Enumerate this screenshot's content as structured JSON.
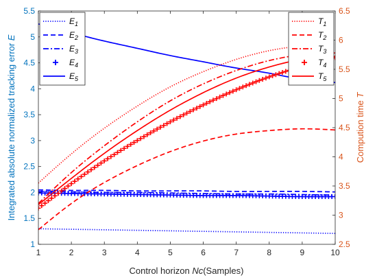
{
  "chart_data": {
    "type": "line",
    "xlabel": {
      "prefix": "Control horizon ",
      "italic": "Nc",
      "suffix": "(Samples)"
    },
    "ylabel_left": {
      "prefix": "Integrated absolute normalized tracking error ",
      "italic": "E"
    },
    "ylabel_right": {
      "prefix": "Compution time ",
      "italic": "T"
    },
    "xlim": [
      1,
      10
    ],
    "ylim_left": [
      1,
      5.5
    ],
    "ylim_right": [
      2.5,
      6.5
    ],
    "xticks": [
      "1",
      "2",
      "3",
      "4",
      "5",
      "6",
      "7",
      "8",
      "9",
      "10"
    ],
    "yticks_left": [
      "1",
      "1.5",
      "2",
      "2.5",
      "3",
      "3.5",
      "4",
      "4.5",
      "5",
      "5.5"
    ],
    "yticks_right": [
      "2.5",
      "3",
      "3.5",
      "4",
      "4.5",
      "5",
      "5.5",
      "6",
      "6.5"
    ],
    "grid": false,
    "legend_left_position": "top-left",
    "legend_right_position": "top-right",
    "colors": {
      "left": "#0000ff",
      "right": "#ff0000",
      "left_axis": "#0072bd",
      "right_axis": "#d95319"
    },
    "series_left": [
      {
        "name": "E",
        "sub": "1",
        "style": "dotted",
        "x": [
          1,
          2,
          3,
          4,
          5,
          6,
          7,
          8,
          9,
          10
        ],
        "values": [
          1.3,
          1.29,
          1.28,
          1.27,
          1.26,
          1.25,
          1.24,
          1.23,
          1.22,
          1.21
        ]
      },
      {
        "name": "E",
        "sub": "2",
        "style": "dashed",
        "x": [
          1,
          2,
          3,
          4,
          5,
          6,
          7,
          8,
          9,
          10
        ],
        "values": [
          2.05,
          2.04,
          2.04,
          2.03,
          2.03,
          2.03,
          2.02,
          2.02,
          2.02,
          2.01
        ]
      },
      {
        "name": "E",
        "sub": "3",
        "style": "dashdot",
        "x": [
          1,
          2,
          3,
          4,
          5,
          6,
          7,
          8,
          9,
          10
        ],
        "values": [
          2.02,
          2.01,
          2.0,
          2.0,
          1.99,
          1.98,
          1.97,
          1.97,
          1.96,
          1.95
        ]
      },
      {
        "name": "E",
        "sub": "4",
        "style": "plus",
        "x": [
          1,
          2,
          3,
          4,
          5,
          6,
          7,
          8,
          9,
          10
        ],
        "values": [
          1.99,
          1.98,
          1.97,
          1.96,
          1.95,
          1.94,
          1.94,
          1.93,
          1.92,
          1.92
        ]
      },
      {
        "name": "E",
        "sub": "5",
        "style": "solid",
        "x": [
          1,
          2,
          3,
          4,
          5,
          6,
          7,
          8,
          9,
          10
        ],
        "values": [
          5.25,
          5.08,
          4.92,
          4.78,
          4.64,
          4.52,
          4.4,
          4.3,
          4.18,
          4.12
        ]
      }
    ],
    "series_right": [
      {
        "name": "T",
        "sub": "1",
        "style": "dotted",
        "x": [
          1,
          2,
          3,
          4,
          5,
          6,
          7,
          8,
          9,
          10
        ],
        "values": [
          3.55,
          4.05,
          4.49,
          4.87,
          5.2,
          5.46,
          5.67,
          5.82,
          5.9,
          5.93
        ]
      },
      {
        "name": "T",
        "sub": "2",
        "style": "dashed",
        "x": [
          1,
          2,
          3,
          4,
          5,
          6,
          7,
          8,
          9,
          10
        ],
        "values": [
          2.75,
          3.2,
          3.56,
          3.85,
          4.09,
          4.27,
          4.39,
          4.45,
          4.48,
          4.46
        ]
      },
      {
        "name": "T",
        "sub": "3",
        "style": "dashdot",
        "x": [
          1,
          2,
          3,
          4,
          5,
          6,
          7,
          8,
          9,
          10
        ],
        "values": [
          3.2,
          3.73,
          4.19,
          4.6,
          4.96,
          5.25,
          5.48,
          5.65,
          5.75,
          5.78
        ]
      },
      {
        "name": "T",
        "sub": "4",
        "style": "plus",
        "x": [
          1,
          2,
          3,
          4,
          5,
          6,
          7,
          8,
          9,
          10
        ],
        "values": [
          3.12,
          3.54,
          3.93,
          4.28,
          4.6,
          4.89,
          5.15,
          5.37,
          5.55,
          5.7
        ]
      },
      {
        "name": "T",
        "sub": "5",
        "style": "solid",
        "x": [
          1,
          2,
          3,
          4,
          5,
          6,
          7,
          8,
          9,
          10
        ],
        "values": [
          3.18,
          3.63,
          4.06,
          4.45,
          4.8,
          5.1,
          5.35,
          5.54,
          5.67,
          5.72
        ]
      }
    ]
  }
}
